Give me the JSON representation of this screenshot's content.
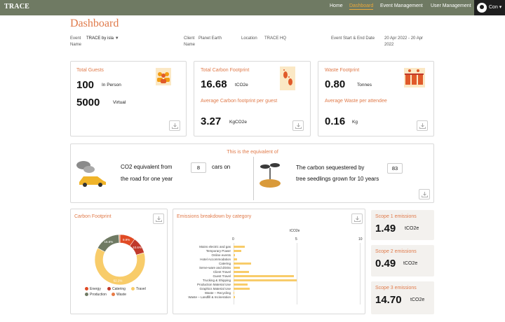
{
  "header": {
    "logo": "TRACE",
    "nav": [
      {
        "label": "Home"
      },
      {
        "label": "Dashboard"
      },
      {
        "label": "Event Management"
      },
      {
        "label": "User Management"
      }
    ],
    "user": "Con"
  },
  "page": {
    "title": "Dashboard"
  },
  "meta": {
    "event_label": "Event Name",
    "event_value": "TRACE by isla",
    "client_label": "Client Name",
    "client_value": "Planet Earth",
    "location_label": "Location",
    "location_value": "TRACE HQ",
    "dates_label": "Event Start & End Date",
    "dates_value": "20 Apr 2022 - 20 Apr 2022"
  },
  "guests": {
    "title": "Total Guests",
    "in_person_value": "100",
    "in_person_label": "In Person",
    "virtual_value": "5000",
    "virtual_label": "Virtual"
  },
  "carbon": {
    "title": "Total Carbon Footprint",
    "value": "16.68",
    "unit": "tCO2e",
    "avg_title": "Average Carbon footprint per guest",
    "avg_value": "3.27",
    "avg_unit": "KgCO2e"
  },
  "waste": {
    "title": "Waste Footprint",
    "value": "0.80",
    "unit": "Tonnes",
    "avg_title": "Average Waste per attendee",
    "avg_value": "0.16",
    "avg_unit": "Kg"
  },
  "equivalent": {
    "title": "This is the equivalent of",
    "cars_prefix": "CO2 equivalent from",
    "cars_value": "8",
    "cars_suffix": "cars on",
    "cars_line2": "the road for one year",
    "trees_prefix": "The carbon sequestered by",
    "trees_value": "83",
    "trees_line2": "tree seedlings grown for 10 years"
  },
  "footprint_chart": {
    "title": "Carbon Footprint",
    "legend": [
      "Energy",
      "Catering",
      "Travel",
      "Production",
      "Waste"
    ]
  },
  "category_chart": {
    "title": "Emissions breakdown by category"
  },
  "scopes": [
    {
      "title": "Scope 1 emissions",
      "value": "1.49",
      "unit": "tCO2e"
    },
    {
      "title": "Scope 2 emissions",
      "value": "0.49",
      "unit": "tCO2e"
    },
    {
      "title": "Scope 3 emissions",
      "value": "14.70",
      "unit": "tCO2e"
    }
  ],
  "chart_data": [
    {
      "type": "pie",
      "title": "Carbon Footprint",
      "categories": [
        "Energy",
        "Catering",
        "Travel",
        "Production",
        "Waste"
      ],
      "values": [
        9.9,
        10.6,
        62.2,
        16.6,
        0.7
      ],
      "data_labels": [
        "9.9%",
        "10.6%",
        "62.2%",
        "16.6%",
        ""
      ],
      "colors": [
        "#e04a24",
        "#c0392b",
        "#f8cc6a",
        "#6f7a63",
        "#e87a45"
      ]
    },
    {
      "type": "bar",
      "orientation": "horizontal",
      "title": "Emissions breakdown by category",
      "xlabel": "tCO2e",
      "xlim": [
        0,
        10
      ],
      "xticks": [
        "0",
        "5",
        "10"
      ],
      "categories": [
        "Mains electric and gas",
        "Temporary Power",
        "Online events",
        "Hotel Accommodation",
        "Catering",
        "Serve-ware and drinks",
        "Client Travel",
        "Guest Travel",
        "Trucking & Shipping",
        "Production Material Use",
        "Graphics Material Use",
        "Waste – Recycling",
        "Waste – Landfill & Incineration"
      ],
      "values": [
        0.9,
        0.6,
        0.1,
        0.3,
        1.4,
        0.5,
        1.2,
        4.8,
        5.0,
        1.1,
        1.3,
        0.05,
        0.1
      ],
      "color": "#f8cc6a"
    }
  ]
}
